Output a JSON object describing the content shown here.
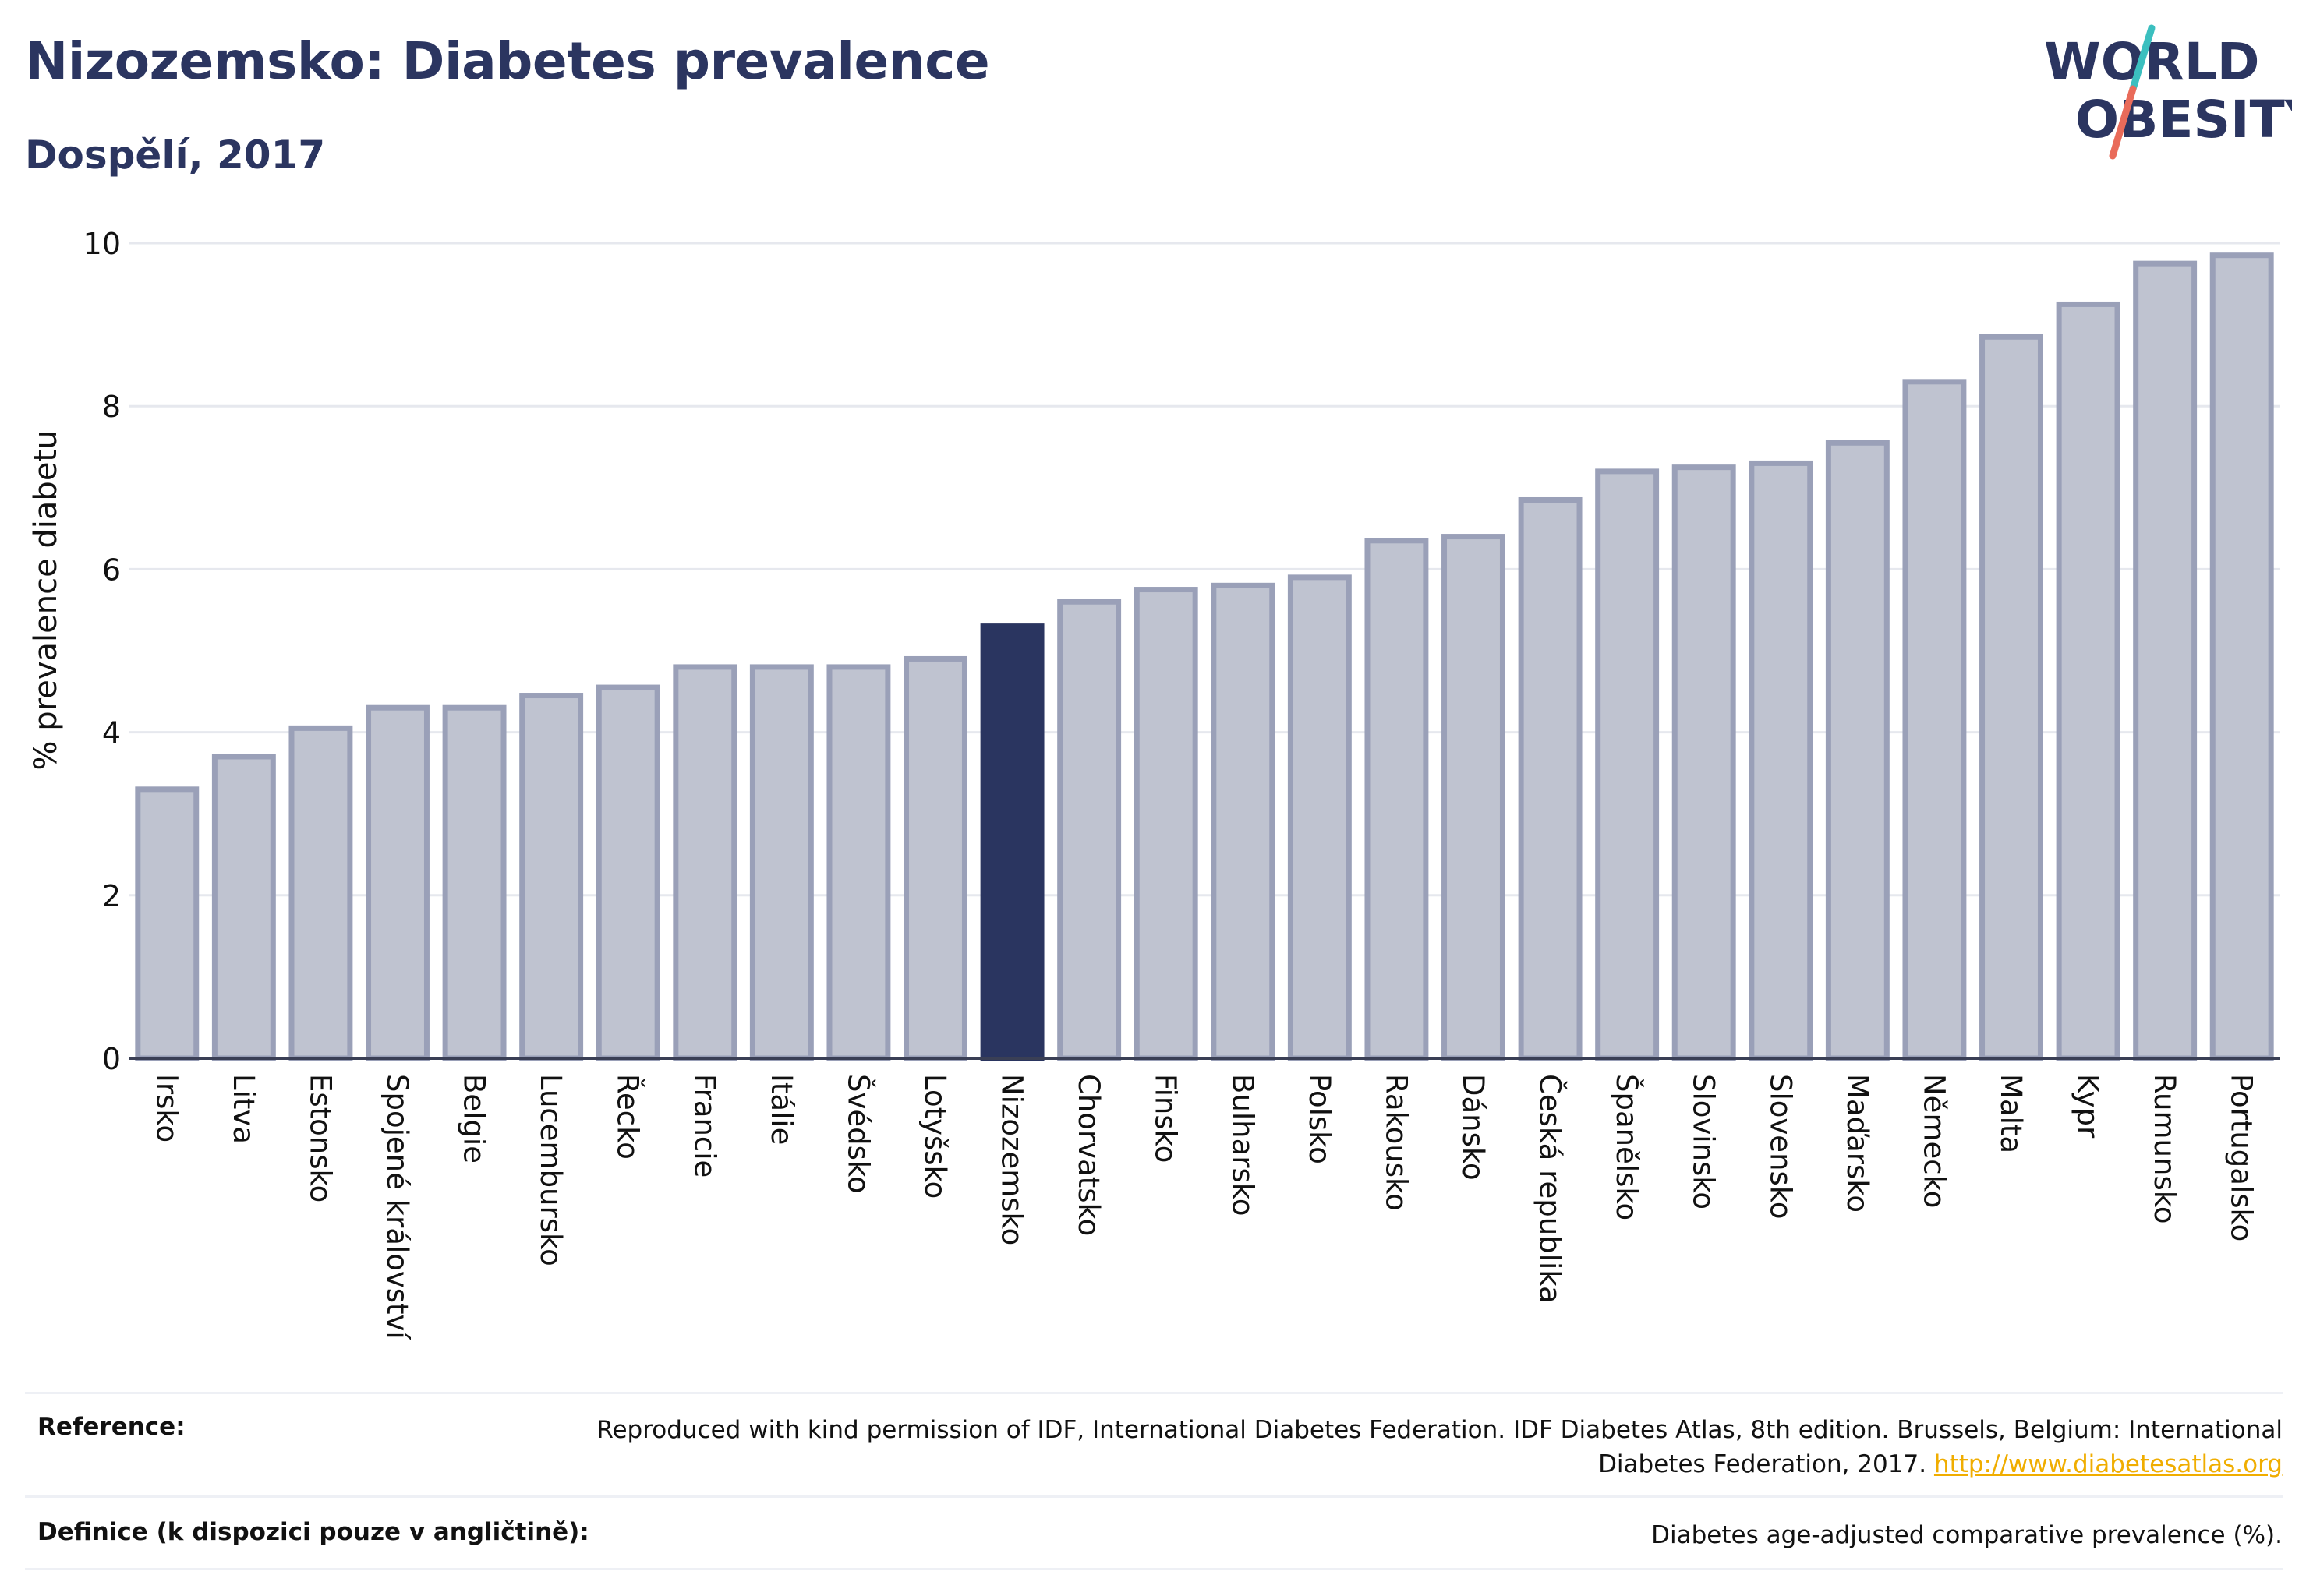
{
  "header": {
    "title": "Nizozemsko: Diabetes prevalence",
    "subtitle": "Dospělí, 2017",
    "logo_line1": "WORLD",
    "logo_line2": "OBESITY"
  },
  "colors": {
    "title": "#2b3560",
    "bar": "#bfc3d0",
    "bar_outline": "#9aa0b8",
    "highlight": "#2a3560",
    "logo_teal": "#3bbfbf",
    "logo_coral": "#e96b5a",
    "link": "#f0ad00"
  },
  "chart_data": {
    "type": "bar",
    "ylabel": "% prevalence diabetu",
    "ylim": [
      0,
      10
    ],
    "yticks": [
      "0",
      "2",
      "4",
      "6",
      "8",
      "10"
    ],
    "grid": true,
    "highlight": "Nizozemsko",
    "categories": [
      "Irsko",
      "Litva",
      "Estonsko",
      "Spojené království",
      "Belgie",
      "Lucembursko",
      "Řecko",
      "Francie",
      "Itálie",
      "Švédsko",
      "Lotyšsko",
      "Nizozemsko",
      "Chorvatsko",
      "Finsko",
      "Bulharsko",
      "Polsko",
      "Rakousko",
      "Dánsko",
      "Česká republika",
      "Španělsko",
      "Slovinsko",
      "Slovensko",
      "Maďarsko",
      "Německo",
      "Malta",
      "Kypr",
      "Rumunsko",
      "Portugalsko"
    ],
    "values": [
      3.3,
      3.7,
      4.05,
      4.3,
      4.3,
      4.45,
      4.55,
      4.8,
      4.8,
      4.8,
      4.9,
      5.3,
      5.6,
      5.75,
      5.8,
      5.9,
      6.35,
      6.4,
      6.85,
      7.2,
      7.25,
      7.3,
      7.55,
      8.3,
      8.85,
      9.25,
      9.75,
      9.85
    ]
  },
  "footer": {
    "reference_label": "Reference:",
    "reference_text": "Reproduced with kind permission of IDF, International Diabetes Federation. IDF Diabetes Atlas, 8th edition. Brussels, Belgium: International Diabetes Federation, 2017.",
    "reference_link": "http://www.diabetesatlas.org",
    "definition_label": "Definice (k dispozici pouze v angličtině):",
    "definition_text": "Diabetes age-adjusted comparative prevalence (%)."
  }
}
